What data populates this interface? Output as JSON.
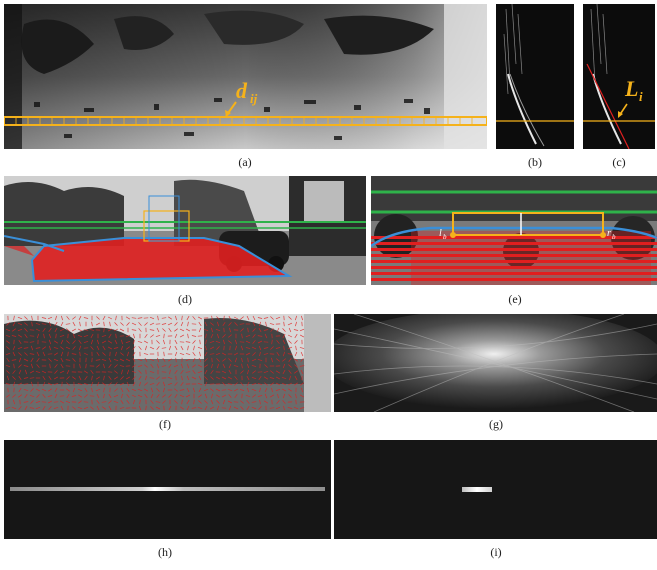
{
  "figure": {
    "captions": {
      "a": "(a)",
      "b": "(b)",
      "c": "(c)",
      "d": "(d)",
      "e": "(e)",
      "f": "(f)",
      "g": "(g)",
      "h": "(h)",
      "i": "(i)"
    },
    "annotations": {
      "d_ij": "d",
      "d_ij_sub": "ij",
      "L_i": "L",
      "L_i_sub": "i",
      "l_b": "l",
      "l_b_sub": "b",
      "r_b": "r",
      "r_b_sub": "b"
    }
  },
  "colors": {
    "highlight": "#f5b21b",
    "road_mask": "#e02020",
    "boundary": "#3a8fd8",
    "horizon_lines": "#2fb24a"
  }
}
